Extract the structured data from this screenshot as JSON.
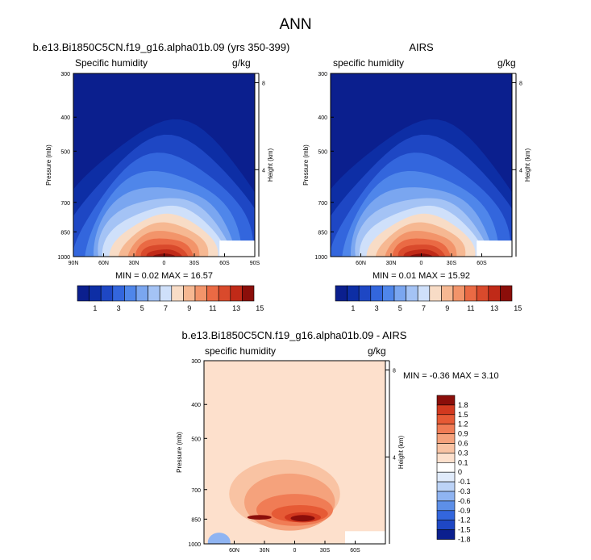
{
  "page_title": "ANN",
  "panels": {
    "model": {
      "title": "b.e13.Bi1850C5CN.f19_g16.alpha01b.09 (yrs 350-399)",
      "left_label": "Specific humidity",
      "right_label": "g/kg",
      "stats": "MIN =  0.02  MAX = 16.57"
    },
    "obs": {
      "title": "AIRS",
      "left_label": "specific humidity",
      "right_label": "g/kg",
      "stats": "MIN =  0.01  MAX = 15.92"
    },
    "diff": {
      "title": "b.e13.Bi1850C5CN.f19_g16.alpha01b.09 - AIRS",
      "left_label": "specific humidity",
      "right_label": "g/kg",
      "stats": "MIN = -0.36  MAX =  3.10"
    }
  },
  "colors": {
    "abs_levels": [
      "#0b1f8e",
      "#0d2ea5",
      "#1e47c4",
      "#3366dd",
      "#4f86ea",
      "#7aa6f0",
      "#a4c3f5",
      "#cfe0fa",
      "#f8dcc6",
      "#f6b892",
      "#f2946a",
      "#ea6a44",
      "#d94a2c",
      "#c02a18",
      "#8b0e0a"
    ],
    "diff_levels": [
      "#0b1f8e",
      "#1e47c4",
      "#3366dd",
      "#5d8fe8",
      "#8fb4f2",
      "#bcd3f7",
      "#e0ebfb",
      "#ffffff",
      "#fde0cc",
      "#f9c3a3",
      "#f5a27c",
      "#f07c55",
      "#e65a35",
      "#d2391f",
      "#8b0e0a"
    ]
  },
  "chart_data": [
    {
      "type": "heatmap",
      "name": "model",
      "title": "b.e13.Bi1850C5CN.f19_g16.alpha01b.09 (yrs 350-399)",
      "variable": "Specific humidity",
      "units": "g/kg",
      "x_ticks": [
        "90N",
        "60N",
        "30N",
        "0",
        "30S",
        "60S",
        "90S"
      ],
      "x_values": [
        90,
        60,
        30,
        0,
        -30,
        -60,
        -90
      ],
      "xlim": [
        90,
        -90
      ],
      "ylabel": "Pressure (mb)",
      "y_ticks": [
        "300",
        "400",
        "500",
        "700",
        "850",
        "1000"
      ],
      "y_values": [
        300,
        400,
        500,
        700,
        850,
        1000
      ],
      "ylim": [
        1000,
        300
      ],
      "y2label": "Height (km)",
      "y2_ticks": [
        "8",
        "4"
      ],
      "y2_values": [
        8,
        4
      ],
      "colorbar_labels": [
        "1",
        "3",
        "5",
        "7",
        "9",
        "11",
        "13",
        "15"
      ],
      "min": 0.02,
      "max": 16.57,
      "peak_lat": 0
    },
    {
      "type": "heatmap",
      "name": "obs",
      "title": "AIRS",
      "variable": "specific humidity",
      "units": "g/kg",
      "x_ticks": [
        "60N",
        "30N",
        "0",
        "30S",
        "60S"
      ],
      "x_values": [
        60,
        30,
        0,
        -30,
        -60
      ],
      "xlim": [
        90,
        -90
      ],
      "ylabel": "Pressure (mb)",
      "y_ticks": [
        "300",
        "400",
        "500",
        "700",
        "850",
        "1000"
      ],
      "y_values": [
        300,
        400,
        500,
        700,
        850,
        1000
      ],
      "ylim": [
        1000,
        300
      ],
      "y2label": "Height (km)",
      "y2_ticks": [
        "8",
        "4"
      ],
      "y2_values": [
        8,
        4
      ],
      "colorbar_labels": [
        "1",
        "3",
        "5",
        "7",
        "9",
        "11",
        "13",
        "15"
      ],
      "min": 0.01,
      "max": 15.92,
      "peak_lat": 0
    },
    {
      "type": "heatmap",
      "name": "diff",
      "title": "b.e13.Bi1850C5CN.f19_g16.alpha01b.09 - AIRS",
      "variable": "specific humidity",
      "units": "g/kg",
      "x_ticks": [
        "60N",
        "30N",
        "0",
        "30S",
        "60S"
      ],
      "x_values": [
        60,
        30,
        0,
        -30,
        -60
      ],
      "xlim": [
        90,
        -90
      ],
      "ylabel": "Pressure (mb)",
      "y_ticks": [
        "300",
        "400",
        "500",
        "700",
        "850",
        "1000"
      ],
      "y_values": [
        300,
        400,
        500,
        700,
        850,
        1000
      ],
      "ylim": [
        1000,
        300
      ],
      "y2label": "Height (km)",
      "y2_ticks": [
        "8",
        "4"
      ],
      "y2_values": [
        8,
        4
      ],
      "colorbar_labels": [
        "1.8",
        "1.5",
        "1.2",
        "0.9",
        "0.6",
        "0.3",
        "0.1",
        "0",
        "-0.1",
        "-0.3",
        "-0.6",
        "-0.9",
        "-1.2",
        "-1.5",
        "-1.8"
      ],
      "min": -0.36,
      "max": 3.1
    }
  ]
}
